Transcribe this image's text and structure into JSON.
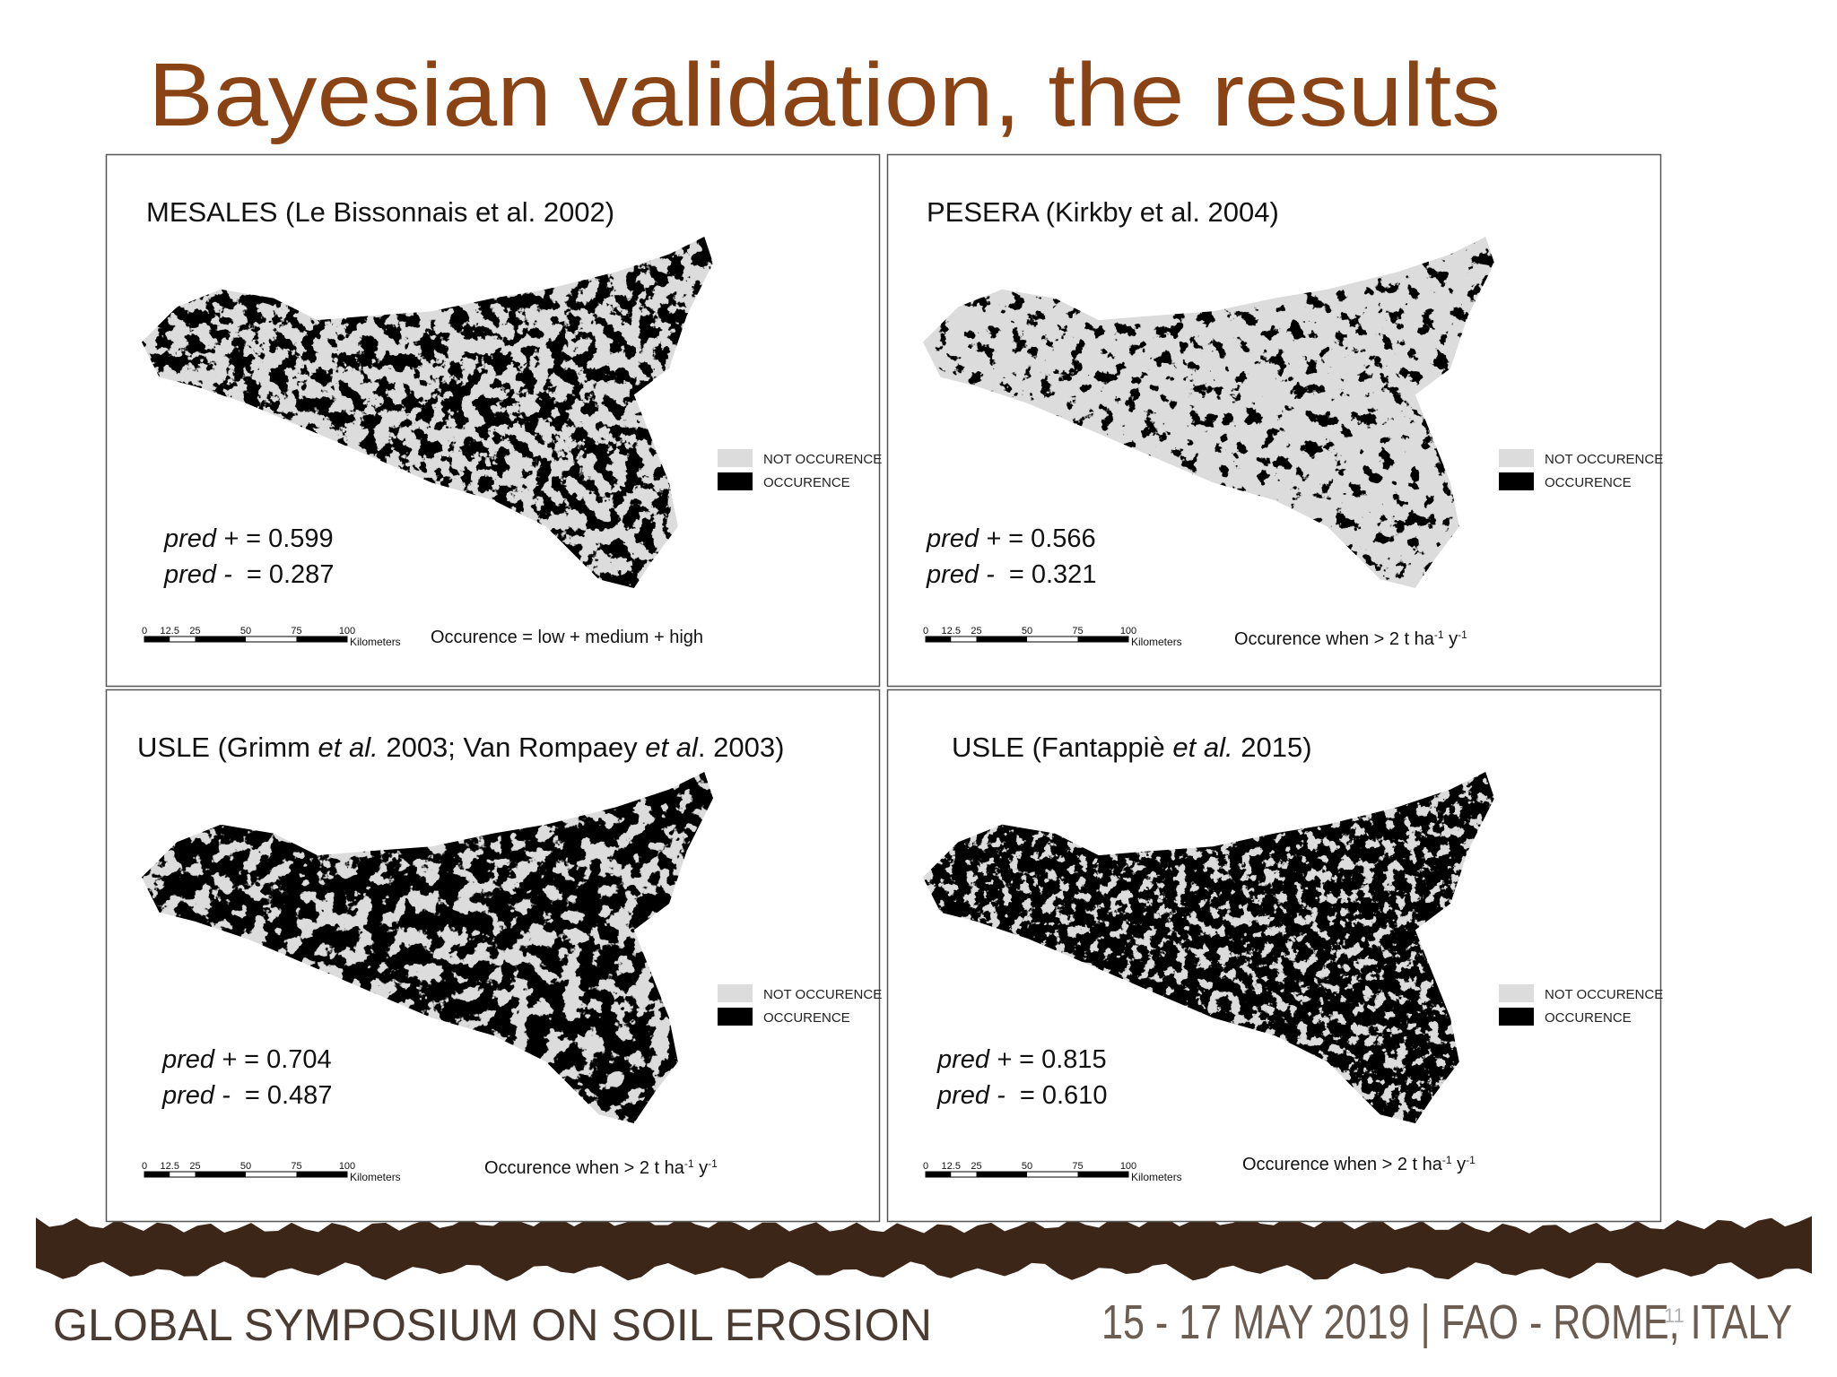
{
  "title": "Bayesian validation, the results",
  "panels": [
    {
      "title": [
        {
          "text": "MESALES (Le Bissonnais et al. 2002)"
        }
      ],
      "legend": [
        "NOT OCCURENCE",
        "OCCURENCE"
      ],
      "pred": [
        {
          "label": "pred +",
          "text": " = 0.599"
        },
        {
          "label": "pred -",
          "text": "  = 0.287"
        }
      ],
      "scale": {
        "ticks": [
          0,
          12.5,
          25,
          50,
          75,
          100
        ],
        "unit": "Kilometers"
      },
      "note": [
        {
          "text": "Occurence = low + medium + high"
        }
      ]
    },
    {
      "title": [
        {
          "text": "PESERA (Kirkby et al. 2004)"
        }
      ],
      "legend": [
        "NOT OCCURENCE",
        "OCCURENCE"
      ],
      "pred": [
        {
          "label": "pred +",
          "text": " = 0.566"
        },
        {
          "label": "pred -",
          "text": "  = 0.321"
        }
      ],
      "scale": {
        "ticks": [
          0,
          12.5,
          25,
          50,
          75,
          100
        ],
        "unit": "Kilometers"
      },
      "note": [
        {
          "text": "Occurence when > 2 t ha"
        },
        {
          "text": "-1",
          "sup": true
        },
        {
          "text": " y"
        },
        {
          "text": "-1",
          "sup": true
        }
      ]
    },
    {
      "title": [
        {
          "text": "USLE (Grimm "
        },
        {
          "text": "et al.",
          "italic": true
        },
        {
          "text": " 2003; Van Rompaey "
        },
        {
          "text": "et al",
          "italic": true
        },
        {
          "text": ". 2003)"
        }
      ],
      "legend": [
        "NOT OCCURENCE",
        "OCCURENCE"
      ],
      "pred": [
        {
          "label": "pred +",
          "text": " = 0.704"
        },
        {
          "label": "pred -",
          "text": "  = 0.487"
        }
      ],
      "scale": {
        "ticks": [
          0,
          12.5,
          25,
          50,
          75,
          100
        ],
        "unit": "Kilometers"
      },
      "note": [
        {
          "text": "Occurence when > 2 t ha"
        },
        {
          "text": "-1",
          "sup": true
        },
        {
          "text": " y"
        },
        {
          "text": "-1",
          "sup": true
        }
      ]
    },
    {
      "title": [
        {
          "text": "USLE (Fantappiè "
        },
        {
          "text": "et al.",
          "italic": true
        },
        {
          "text": " 2015)"
        }
      ],
      "legend": [
        "NOT OCCURENCE",
        "OCCURENCE"
      ],
      "pred": [
        {
          "label": "pred +",
          "text": " = 0.815"
        },
        {
          "label": "pred -",
          "text": "  = 0.610"
        }
      ],
      "scale": {
        "ticks": [
          0,
          12.5,
          25,
          50,
          75,
          100
        ],
        "unit": "Kilometers"
      },
      "note": [
        {
          "text": "Occurence when > 2 t ha"
        },
        {
          "text": "-1",
          "sup": true
        },
        {
          "text": " y"
        },
        {
          "text": "-1",
          "sup": true
        }
      ]
    }
  ],
  "footer": {
    "left": "GLOBAL SYMPOSIUM ON SOIL EROSION",
    "right": "15 - 17 MAY 2019 | FAO - ROME, ITALY",
    "page": "11"
  }
}
